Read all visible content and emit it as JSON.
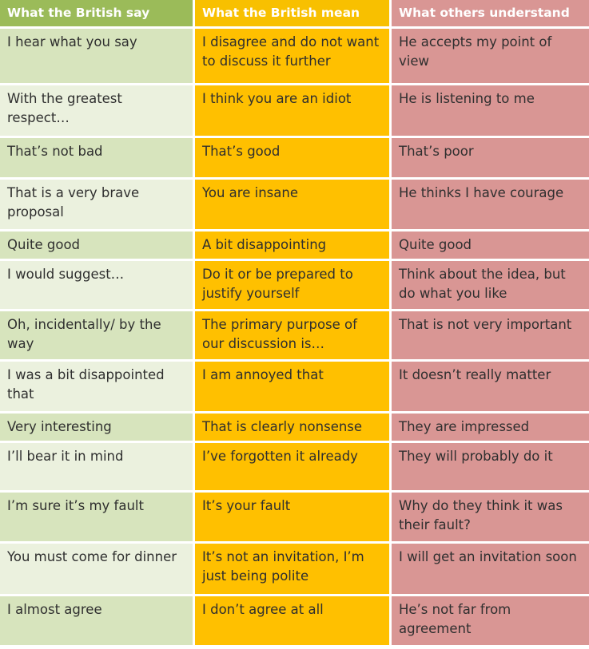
{
  "headers": {
    "say": "What the British say",
    "mean": "What the British mean",
    "understand": "What others understand"
  },
  "rows": [
    {
      "say": "I hear what you say",
      "mean": "I disagree and do not want to discuss it further",
      "understand": "He accepts my point of view"
    },
    {
      "say": "With the greatest respect…",
      "mean": "I think you are an idiot",
      "understand": "He is listening to me"
    },
    {
      "say": "That’s not bad",
      "mean": "That’s good",
      "understand": "That’s poor"
    },
    {
      "say": "That is a very brave proposal",
      "mean": "You are insane",
      "understand": "He thinks I have courage"
    },
    {
      "say": "Quite good",
      "mean": "A bit disappointing",
      "understand": "Quite good"
    },
    {
      "say": "I would suggest…",
      "mean": "Do it or be prepared to justify yourself",
      "understand": "Think about the idea, but do what you like"
    },
    {
      "say": "Oh, incidentally/ by the way",
      "mean": "The primary purpose of our discussion is…",
      "understand": "That is not very important"
    },
    {
      "say": "I was a bit disappointed that",
      "mean": "I am annoyed that",
      "understand": "It doesn’t really matter"
    },
    {
      "say": "Very interesting",
      "mean": "That is clearly nonsense",
      "understand": "They are impressed"
    },
    {
      "say": "I’ll bear it in mind",
      "mean": "I’ve forgotten it already",
      "understand": "They will probably do it"
    },
    {
      "say": "I’m sure it’s my fault",
      "mean": "It’s your fault",
      "understand": "Why do they think it was their fault?"
    },
    {
      "say": "You must come for dinner",
      "mean": "It’s not an invitation, I’m just being polite",
      "understand": "I will get an invitation soon"
    },
    {
      "say": "I almost agree",
      "mean": "I don’t agree at all",
      "understand": "He’s not far from agreement"
    }
  ]
}
